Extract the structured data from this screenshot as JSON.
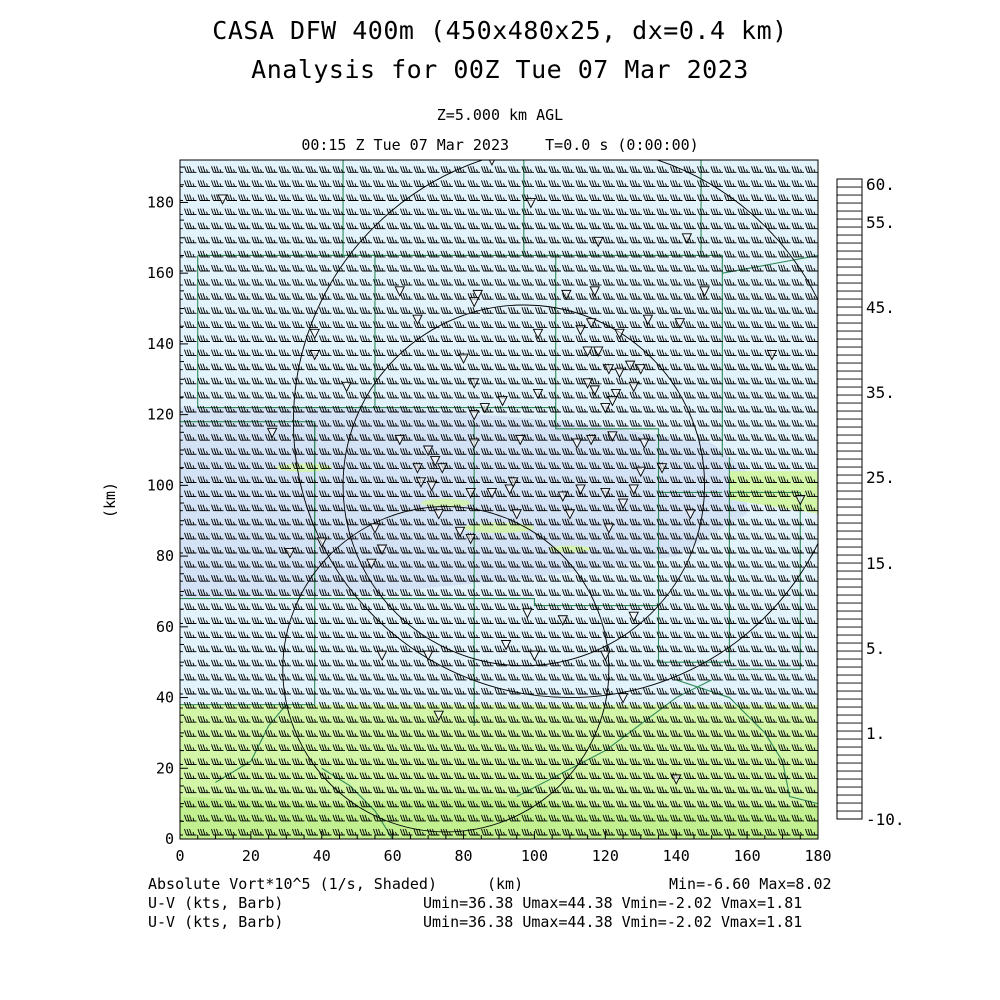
{
  "title_line1": "CASA DFW 400m (450x480x25, dx=0.4 km)",
  "title_line2": "Analysis for 00Z Tue 07 Mar 2023",
  "level_label": "Z=5.000 km AGL",
  "time_label": "00:15 Z Tue 07 Mar 2023    T=0.0 s (0:00:00)",
  "x_unit": "(km)",
  "y_unit": "(km)",
  "footer": {
    "field_label": "Absolute Vort*10^5 (1/s, Shaded)",
    "field_range": "Min=-6.60 Max=8.02",
    "wind1_label": "U-V (kts, Barb)",
    "wind1_range": "Umin=36.38 Umax=44.38 Vmin=-2.02 Vmax=1.81",
    "wind2_label": "U-V (kts, Barb)",
    "wind2_range": "Umin=36.38 Umax=44.38 Vmin=-2.02 Vmax=1.81"
  },
  "axes": {
    "x_ticks": [
      "0",
      "20",
      "40",
      "60",
      "80",
      "100",
      "120",
      "140",
      "160",
      "180"
    ],
    "y_ticks": [
      "0",
      "20",
      "40",
      "60",
      "80",
      "100",
      "120",
      "140",
      "160",
      "180"
    ],
    "xlim": [
      0,
      180
    ],
    "ylim": [
      0,
      192
    ]
  },
  "colorbar": {
    "labels": [
      "60.",
      "55.",
      "45.",
      "35.",
      "25.",
      "15.",
      "5.",
      "1.",
      "-10."
    ],
    "colors": [
      "#fff",
      "#fff",
      "#fff",
      "#fff",
      "#fff",
      "#fff",
      "#fff",
      "#fff",
      "#fff",
      "#fff",
      "#fff",
      "#fff",
      "#fff",
      "#fff",
      "#fff",
      "#fff",
      "#fff",
      "#fff",
      "#fff",
      "#fff",
      "#fff",
      "#fff",
      "#fff",
      "#fff",
      "#fff",
      "#fff",
      "#fff",
      "#fff",
      "#fff",
      "#fff",
      "#fff",
      "#fff",
      "#fff",
      "#fff",
      "#fff",
      "#fff",
      "#fff",
      "#fff",
      "#fff",
      "#fff",
      "#fff",
      "#fff",
      "#fff",
      "#fff",
      "#fff",
      "#fff",
      "#fff",
      "#fff",
      "#fff",
      "#fff",
      "#fff",
      "#fff",
      "#fff",
      "#fff",
      "#fff",
      "#fff",
      "#fff",
      "#fff",
      "#fff",
      "#fff",
      "#fff",
      "#fff",
      "#fff",
      "#fff",
      "#fff",
      "#fff",
      "#fff",
      "#fff",
      "#fff",
      "#fff",
      "#fff",
      "#fff",
      "#fff",
      "#fff",
      "#fff",
      "#fff",
      "#fff",
      "#fff",
      "#fff",
      "#fff"
    ]
  },
  "colors": {
    "vort_low": "#e2f3fb",
    "vort_near_zero": "#d4e2f5",
    "vort_positive": "#d2f5a8",
    "vort_strong": "#c2f090",
    "county_line": "#2e8b57",
    "barb": "#000000",
    "range_ring": "#000000"
  }
}
